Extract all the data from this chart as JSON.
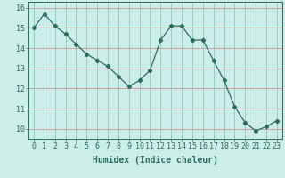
{
  "xlabel": "Humidex (Indice chaleur)",
  "x": [
    0,
    1,
    2,
    3,
    4,
    5,
    6,
    7,
    8,
    9,
    10,
    11,
    12,
    13,
    14,
    15,
    16,
    17,
    18,
    19,
    20,
    21,
    22,
    23
  ],
  "y": [
    15.0,
    15.7,
    15.1,
    14.7,
    14.2,
    13.7,
    13.4,
    13.1,
    12.6,
    12.1,
    12.4,
    12.9,
    14.4,
    15.1,
    15.1,
    14.4,
    14.4,
    13.4,
    12.4,
    11.1,
    10.3,
    9.9,
    10.1,
    10.4
  ],
  "line_color": "#2e6b5e",
  "marker": "D",
  "marker_size": 2.2,
  "bg_color": "#cceee8",
  "grid_color_h": "#d08080",
  "grid_color_v": "#88bbbb",
  "text_color": "#2e6b5e",
  "ylim": [
    9.5,
    16.3
  ],
  "xlim": [
    -0.5,
    23.5
  ],
  "yticks": [
    10,
    11,
    12,
    13,
    14,
    15,
    16
  ],
  "xticks": [
    0,
    1,
    2,
    3,
    4,
    5,
    6,
    7,
    8,
    9,
    10,
    11,
    12,
    13,
    14,
    15,
    16,
    17,
    18,
    19,
    20,
    21,
    22,
    23
  ],
  "label_fontsize": 7,
  "tick_fontsize": 6
}
